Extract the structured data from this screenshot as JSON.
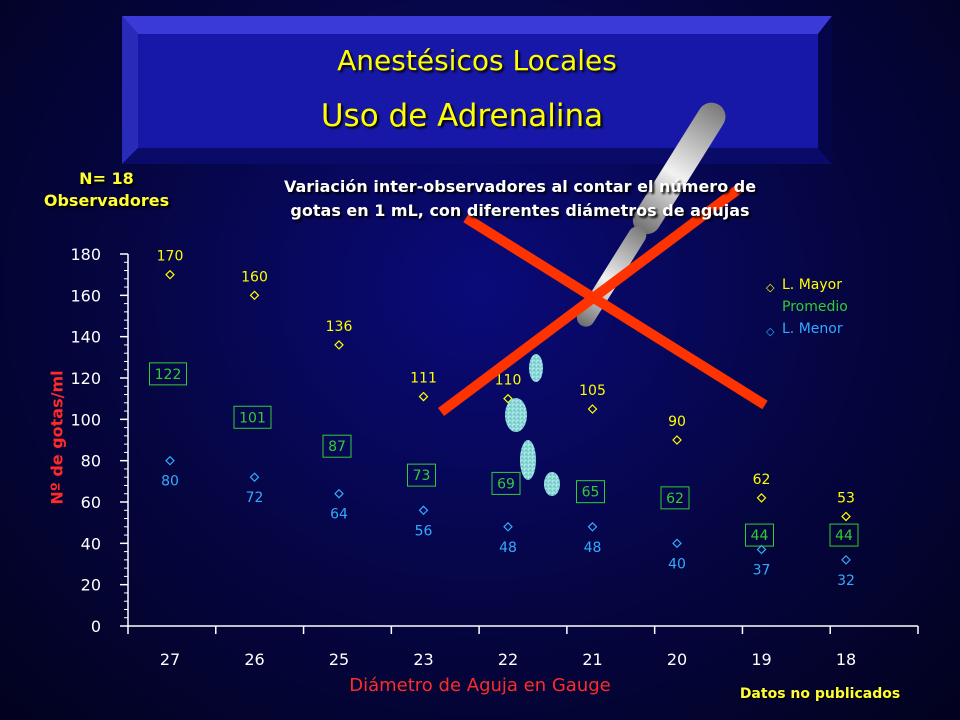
{
  "header": {
    "title": "Anestésicos Locales",
    "subtitle": "Uso de Adrenalina"
  },
  "sample": {
    "line1": "N= 18",
    "line2": "Observadores"
  },
  "description": {
    "line1": "Variación inter-observadores  al contar el número de",
    "line2": "gotas en 1 mL, con diferentes diámetros de agujas"
  },
  "footnote": "Datos no publicados",
  "colors": {
    "mayor": "#ffff00",
    "promedio": "#33cc33",
    "menor": "#33aaff",
    "axis_text": "#ffffff",
    "axis_title": "#ff2a2a",
    "cross": "#ff3300"
  },
  "decoration": {
    "pipette_icon": "pipette-icon",
    "cross_icon": "red-x-cross-icon",
    "drops_icon": "drops-icon"
  },
  "chart_data": {
    "type": "scatter",
    "xlabel": "Diámetro de Aguja en Gauge",
    "ylabel": "Nº de gotas/ml",
    "categories": [
      "27",
      "26",
      "25",
      "23",
      "22",
      "21",
      "20",
      "19",
      "18"
    ],
    "ylim": [
      0,
      180
    ],
    "yticks": [
      "0",
      "20",
      "40",
      "60",
      "80",
      "100",
      "120",
      "140",
      "160",
      "180"
    ],
    "legend_position": "top-right",
    "series": [
      {
        "name": "L. Mayor",
        "marker": "diamond",
        "values": [
          170,
          160,
          136,
          111,
          110,
          105,
          90,
          62,
          53
        ]
      },
      {
        "name": "Promedio",
        "marker": "label-box",
        "values": [
          122,
          101,
          87,
          73,
          69,
          65,
          62,
          44,
          44
        ]
      },
      {
        "name": "L. Menor",
        "marker": "diamond",
        "values": [
          80,
          72,
          64,
          56,
          48,
          48,
          40,
          37,
          32
        ]
      }
    ]
  }
}
